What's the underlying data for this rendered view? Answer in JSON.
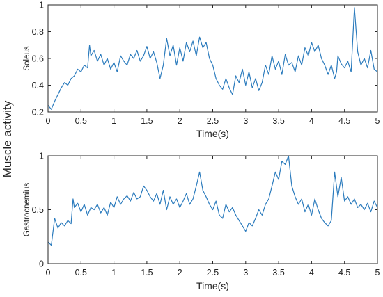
{
  "figure": {
    "shared_ylabel": "Muscle activity"
  },
  "chart_data": [
    {
      "type": "line",
      "ylabel": "Soleus",
      "xlabel": "Time(s)",
      "xlim": [
        0,
        5
      ],
      "ylim": [
        0.2,
        1.0
      ],
      "xticks": [
        0,
        0.5,
        1,
        1.5,
        2,
        2.5,
        3,
        3.5,
        4,
        4.5,
        5
      ],
      "xtick_labels": [
        "0",
        "0.5",
        "1",
        "1.5",
        "2",
        "2.5",
        "3",
        "3.5",
        "4",
        "4.5",
        "5"
      ],
      "yticks": [
        0.2,
        0.4,
        0.6,
        0.8,
        1.0
      ],
      "ytick_labels": [
        "0.2",
        "0.4",
        "0.6",
        "0.8",
        "1"
      ],
      "grid": false,
      "series": [
        {
          "color": "#2b7bbd",
          "x": [
            0,
            0.05,
            0.1,
            0.15,
            0.2,
            0.25,
            0.3,
            0.35,
            0.4,
            0.45,
            0.5,
            0.55,
            0.6,
            0.63,
            0.65,
            0.7,
            0.75,
            0.8,
            0.85,
            0.9,
            0.95,
            1.0,
            1.05,
            1.1,
            1.15,
            1.2,
            1.25,
            1.3,
            1.35,
            1.4,
            1.45,
            1.5,
            1.55,
            1.6,
            1.65,
            1.7,
            1.75,
            1.8,
            1.85,
            1.9,
            1.95,
            2.0,
            2.05,
            2.1,
            2.15,
            2.2,
            2.25,
            2.3,
            2.35,
            2.4,
            2.45,
            2.5,
            2.55,
            2.6,
            2.65,
            2.7,
            2.75,
            2.8,
            2.85,
            2.9,
            2.95,
            3.0,
            3.05,
            3.1,
            3.15,
            3.2,
            3.25,
            3.3,
            3.35,
            3.4,
            3.45,
            3.5,
            3.55,
            3.6,
            3.65,
            3.7,
            3.75,
            3.8,
            3.85,
            3.9,
            3.95,
            4.0,
            4.05,
            4.1,
            4.15,
            4.2,
            4.25,
            4.3,
            4.35,
            4.38,
            4.4,
            4.45,
            4.5,
            4.55,
            4.6,
            4.65,
            4.7,
            4.75,
            4.8,
            4.85,
            4.9,
            4.95,
            5.0
          ],
          "y": [
            0.25,
            0.22,
            0.28,
            0.33,
            0.38,
            0.42,
            0.4,
            0.45,
            0.47,
            0.52,
            0.5,
            0.55,
            0.53,
            0.7,
            0.62,
            0.66,
            0.58,
            0.63,
            0.55,
            0.6,
            0.52,
            0.57,
            0.5,
            0.62,
            0.58,
            0.55,
            0.63,
            0.6,
            0.66,
            0.58,
            0.62,
            0.69,
            0.6,
            0.65,
            0.57,
            0.45,
            0.55,
            0.75,
            0.62,
            0.7,
            0.55,
            0.68,
            0.58,
            0.72,
            0.65,
            0.73,
            0.62,
            0.76,
            0.68,
            0.72,
            0.6,
            0.55,
            0.45,
            0.4,
            0.37,
            0.45,
            0.38,
            0.33,
            0.47,
            0.42,
            0.52,
            0.4,
            0.5,
            0.38,
            0.45,
            0.36,
            0.42,
            0.55,
            0.48,
            0.62,
            0.52,
            0.58,
            0.48,
            0.63,
            0.55,
            0.57,
            0.5,
            0.62,
            0.55,
            0.68,
            0.62,
            0.72,
            0.65,
            0.7,
            0.6,
            0.55,
            0.48,
            0.55,
            0.45,
            0.5,
            0.62,
            0.56,
            0.53,
            0.58,
            0.5,
            0.98,
            0.65,
            0.55,
            0.6,
            0.53,
            0.66,
            0.52,
            0.5
          ]
        }
      ]
    },
    {
      "type": "line",
      "ylabel": "Gastrocnemius",
      "xlabel": "Time(s)",
      "xlim": [
        0,
        5
      ],
      "ylim": [
        0,
        1
      ],
      "xticks": [
        0,
        0.5,
        1,
        1.5,
        2,
        2.5,
        3,
        3.5,
        4,
        4.5,
        5
      ],
      "xtick_labels": [
        "0",
        "0.5",
        "1",
        "1.5",
        "2",
        "2.5",
        "3",
        "3.5",
        "4",
        "4.5",
        "5"
      ],
      "yticks": [
        0,
        0.5,
        1
      ],
      "ytick_labels": [
        "0",
        "0.5",
        "1"
      ],
      "grid": false,
      "series": [
        {
          "color": "#2b7bbd",
          "x": [
            0,
            0.05,
            0.1,
            0.15,
            0.2,
            0.25,
            0.3,
            0.35,
            0.38,
            0.4,
            0.45,
            0.5,
            0.55,
            0.6,
            0.65,
            0.7,
            0.75,
            0.8,
            0.85,
            0.9,
            0.95,
            1.0,
            1.05,
            1.1,
            1.15,
            1.2,
            1.25,
            1.3,
            1.35,
            1.4,
            1.45,
            1.5,
            1.55,
            1.6,
            1.65,
            1.7,
            1.75,
            1.8,
            1.85,
            1.9,
            1.95,
            2.0,
            2.05,
            2.1,
            2.15,
            2.2,
            2.25,
            2.3,
            2.35,
            2.4,
            2.45,
            2.5,
            2.55,
            2.6,
            2.65,
            2.7,
            2.75,
            2.8,
            2.85,
            2.9,
            2.95,
            3.0,
            3.05,
            3.1,
            3.15,
            3.2,
            3.25,
            3.3,
            3.35,
            3.4,
            3.45,
            3.5,
            3.55,
            3.6,
            3.65,
            3.7,
            3.75,
            3.8,
            3.85,
            3.9,
            3.95,
            4.0,
            4.05,
            4.1,
            4.15,
            4.2,
            4.25,
            4.3,
            4.35,
            4.4,
            4.45,
            4.5,
            4.55,
            4.6,
            4.65,
            4.7,
            4.75,
            4.8,
            4.85,
            4.9,
            4.95,
            5.0
          ],
          "y": [
            0.2,
            0.17,
            0.42,
            0.33,
            0.38,
            0.35,
            0.4,
            0.37,
            0.6,
            0.52,
            0.56,
            0.48,
            0.55,
            0.45,
            0.52,
            0.5,
            0.55,
            0.47,
            0.52,
            0.45,
            0.57,
            0.52,
            0.62,
            0.55,
            0.6,
            0.63,
            0.58,
            0.66,
            0.6,
            0.62,
            0.72,
            0.68,
            0.62,
            0.58,
            0.65,
            0.55,
            0.68,
            0.5,
            0.62,
            0.55,
            0.6,
            0.52,
            0.58,
            0.65,
            0.55,
            0.6,
            0.72,
            0.85,
            0.68,
            0.62,
            0.55,
            0.5,
            0.58,
            0.45,
            0.42,
            0.55,
            0.48,
            0.52,
            0.45,
            0.4,
            0.35,
            0.3,
            0.38,
            0.35,
            0.42,
            0.5,
            0.45,
            0.55,
            0.6,
            0.72,
            0.85,
            0.78,
            0.95,
            0.92,
            1.0,
            0.72,
            0.62,
            0.55,
            0.6,
            0.48,
            0.55,
            0.45,
            0.6,
            0.5,
            0.42,
            0.38,
            0.35,
            0.4,
            0.85,
            0.62,
            0.8,
            0.58,
            0.62,
            0.55,
            0.6,
            0.52,
            0.55,
            0.5,
            0.56,
            0.48,
            0.58,
            0.52
          ]
        }
      ]
    }
  ]
}
